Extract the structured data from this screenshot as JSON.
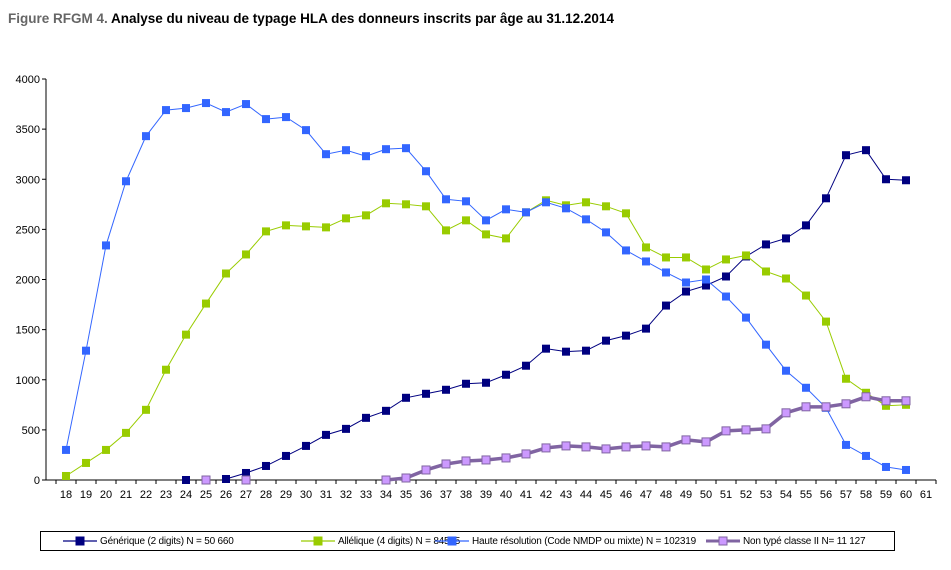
{
  "title": {
    "prefix": "Figure RFGM 4.",
    "main": "Analyse du niveau de typage HLA des donneurs inscrits par âge au 31.12.2014"
  },
  "chart_data": {
    "type": "line",
    "title": "Figure RFGM 4. Analyse du niveau de typage HLA des donneurs inscrits par âge au 31.12.2014",
    "xlabel": "",
    "ylabel": "",
    "ylim": [
      0,
      4000
    ],
    "yticks": [
      0,
      500,
      1000,
      1500,
      2000,
      2500,
      3000,
      3500,
      4000
    ],
    "x": [
      18,
      19,
      20,
      21,
      22,
      23,
      24,
      25,
      26,
      27,
      28,
      29,
      30,
      31,
      32,
      33,
      34,
      35,
      36,
      37,
      38,
      39,
      40,
      41,
      42,
      43,
      44,
      45,
      46,
      47,
      48,
      49,
      50,
      51,
      52,
      53,
      54,
      55,
      56,
      57,
      58,
      59,
      60,
      61
    ],
    "grid": false,
    "legend_position": "bottom",
    "series": [
      {
        "name": "Générique (2 digits) N = 50 660",
        "color": "#000080",
        "marker_fill": "#000080",
        "points": [
          [
            24,
            0
          ],
          [
            26,
            10
          ],
          [
            27,
            70
          ],
          [
            28,
            140
          ],
          [
            29,
            240
          ],
          [
            30,
            340
          ],
          [
            31,
            450
          ],
          [
            32,
            510
          ],
          [
            33,
            620
          ],
          [
            34,
            690
          ],
          [
            35,
            820
          ],
          [
            36,
            860
          ],
          [
            37,
            900
          ],
          [
            38,
            960
          ],
          [
            39,
            970
          ],
          [
            40,
            1050
          ],
          [
            41,
            1140
          ],
          [
            42,
            1310
          ],
          [
            43,
            1280
          ],
          [
            44,
            1290
          ],
          [
            45,
            1390
          ],
          [
            46,
            1440
          ],
          [
            47,
            1510
          ],
          [
            48,
            1740
          ],
          [
            49,
            1880
          ],
          [
            50,
            1940
          ],
          [
            51,
            2030
          ],
          [
            52,
            2230
          ],
          [
            53,
            2350
          ],
          [
            54,
            2410
          ],
          [
            55,
            2540
          ],
          [
            56,
            2810
          ],
          [
            57,
            3240
          ],
          [
            58,
            3290
          ],
          [
            59,
            3000
          ],
          [
            60,
            2990
          ]
        ]
      },
      {
        "name": "Allélique (4 digits) N = 84565",
        "color": "#99CC00",
        "marker_fill": "#99CC00",
        "points": [
          [
            18,
            40
          ],
          [
            19,
            170
          ],
          [
            20,
            300
          ],
          [
            21,
            470
          ],
          [
            22,
            700
          ],
          [
            23,
            1100
          ],
          [
            24,
            1450
          ],
          [
            25,
            1760
          ],
          [
            26,
            2060
          ],
          [
            27,
            2250
          ],
          [
            28,
            2480
          ],
          [
            29,
            2540
          ],
          [
            30,
            2530
          ],
          [
            31,
            2520
          ],
          [
            32,
            2610
          ],
          [
            33,
            2640
          ],
          [
            34,
            2760
          ],
          [
            35,
            2750
          ],
          [
            36,
            2730
          ],
          [
            37,
            2490
          ],
          [
            38,
            2590
          ],
          [
            39,
            2450
          ],
          [
            40,
            2410
          ],
          [
            41,
            2670
          ],
          [
            42,
            2790
          ],
          [
            43,
            2740
          ],
          [
            44,
            2770
          ],
          [
            45,
            2730
          ],
          [
            46,
            2660
          ],
          [
            47,
            2320
          ],
          [
            48,
            2220
          ],
          [
            49,
            2220
          ],
          [
            50,
            2100
          ],
          [
            51,
            2200
          ],
          [
            52,
            2240
          ],
          [
            53,
            2080
          ],
          [
            54,
            2010
          ],
          [
            55,
            1840
          ],
          [
            56,
            1580
          ],
          [
            57,
            1010
          ],
          [
            58,
            870
          ],
          [
            59,
            740
          ],
          [
            60,
            750
          ]
        ]
      },
      {
        "name": "Haute résolution (Code NMDP ou mixte) N = 102319",
        "color": "#3366FF",
        "marker_fill": "#3366FF",
        "points": [
          [
            18,
            300
          ],
          [
            19,
            1290
          ],
          [
            20,
            2340
          ],
          [
            21,
            2980
          ],
          [
            22,
            3430
          ],
          [
            23,
            3690
          ],
          [
            24,
            3710
          ],
          [
            25,
            3760
          ],
          [
            26,
            3670
          ],
          [
            27,
            3750
          ],
          [
            28,
            3600
          ],
          [
            29,
            3620
          ],
          [
            30,
            3490
          ],
          [
            31,
            3250
          ],
          [
            32,
            3290
          ],
          [
            33,
            3230
          ],
          [
            34,
            3300
          ],
          [
            35,
            3310
          ],
          [
            36,
            3080
          ],
          [
            37,
            2800
          ],
          [
            38,
            2780
          ],
          [
            39,
            2590
          ],
          [
            40,
            2700
          ],
          [
            41,
            2670
          ],
          [
            42,
            2770
          ],
          [
            43,
            2710
          ],
          [
            44,
            2600
          ],
          [
            45,
            2470
          ],
          [
            46,
            2290
          ],
          [
            47,
            2180
          ],
          [
            48,
            2070
          ],
          [
            49,
            1970
          ],
          [
            50,
            2000
          ],
          [
            51,
            1830
          ],
          [
            52,
            1620
          ],
          [
            53,
            1350
          ],
          [
            54,
            1090
          ],
          [
            55,
            920
          ],
          [
            56,
            720
          ],
          [
            57,
            350
          ],
          [
            58,
            240
          ],
          [
            59,
            130
          ],
          [
            60,
            100
          ]
        ]
      },
      {
        "name": "Non typé classe II N= 11 127",
        "color": "#8064A2",
        "marker_fill": "#CC99FF",
        "points": [
          [
            25,
            0
          ],
          [
            27,
            0
          ],
          [
            34,
            0
          ],
          [
            35,
            20
          ],
          [
            36,
            100
          ],
          [
            37,
            160
          ],
          [
            38,
            190
          ],
          [
            39,
            200
          ],
          [
            40,
            220
          ],
          [
            41,
            260
          ],
          [
            42,
            320
          ],
          [
            43,
            340
          ],
          [
            44,
            330
          ],
          [
            45,
            310
          ],
          [
            46,
            330
          ],
          [
            47,
            340
          ],
          [
            48,
            330
          ],
          [
            49,
            400
          ],
          [
            50,
            380
          ],
          [
            51,
            490
          ],
          [
            52,
            500
          ],
          [
            53,
            510
          ],
          [
            54,
            670
          ],
          [
            55,
            730
          ],
          [
            56,
            730
          ],
          [
            57,
            760
          ],
          [
            58,
            830
          ],
          [
            59,
            790
          ],
          [
            60,
            790
          ]
        ]
      }
    ]
  }
}
